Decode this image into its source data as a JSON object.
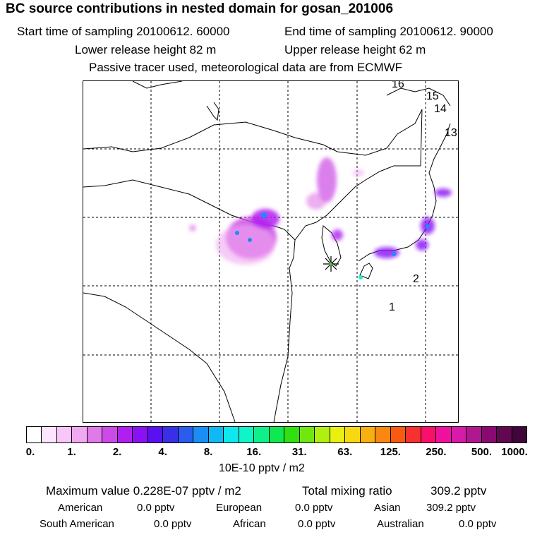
{
  "header": {
    "title": "BC  source contributions in nested domain for gosan_201006",
    "start_label": "Start time of sampling 20100612. 60000",
    "end_label": "End time of sampling 20100612. 90000",
    "lower_label": "Lower release height   82 m",
    "upper_label": "Upper release height   62 m",
    "tracer_label": "Passive tracer used, meteorological data are from ECMWF"
  },
  "chart_data": {
    "type": "heatmap",
    "title": "BC  source contributions in nested domain for gosan_201006",
    "map_labels": [
      "16",
      "15",
      "14",
      "13",
      "2",
      "1"
    ],
    "colorbar": {
      "tick_labels": [
        "0.",
        "1.",
        "2.",
        "4.",
        "8.",
        "16.",
        "31.",
        "63.",
        "125.",
        "250.",
        "500.",
        "1000."
      ],
      "unit": "10E-10 pptv / m2",
      "colors": [
        "#ffffff",
        "#fde6fd",
        "#f8c6f8",
        "#f0a8f0",
        "#e07ae6",
        "#cc4ae6",
        "#b21ef0",
        "#8a10f5",
        "#5a10f0",
        "#3a2ee8",
        "#2a5cf0",
        "#1a8ef5",
        "#10b8f5",
        "#10e8f0",
        "#10f5c8",
        "#10f08a",
        "#10e850",
        "#30e010",
        "#70e810",
        "#b0f010",
        "#e8f010",
        "#f8d810",
        "#f8b010",
        "#f88810",
        "#f85a10",
        "#f83030",
        "#f8106a",
        "#f010a0",
        "#d81aa8",
        "#b01890",
        "#880a70",
        "#600850",
        "#40063a"
      ]
    },
    "stats": {
      "max_label": "Maximum value  0.228E-07 pptv / m2",
      "total_label": "Total mixing ratio",
      "total_value": "309.2 pptv",
      "rows": [
        [
          [
            "American",
            "0.0 pptv"
          ],
          [
            "European",
            "0.0 pptv"
          ],
          [
            "Asian",
            "309.2 pptv"
          ]
        ],
        [
          [
            "South American",
            "0.0 pptv"
          ],
          [
            "African",
            "0.0 pptv"
          ],
          [
            "Australian",
            "0.0 pptv"
          ]
        ]
      ]
    }
  }
}
